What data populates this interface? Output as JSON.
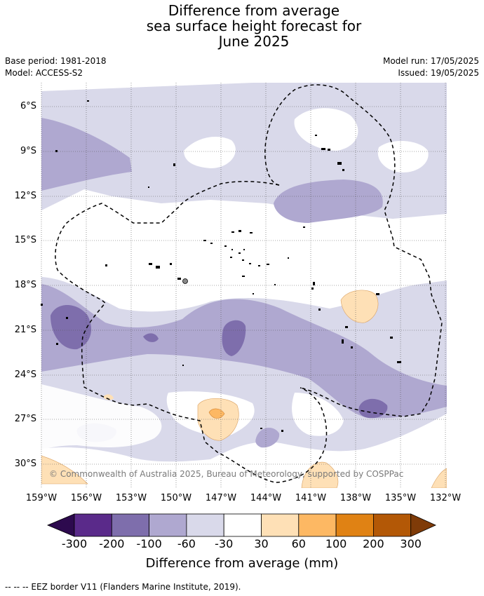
{
  "title": {
    "line1": "Difference from average",
    "line2": "sea surface height forecast for",
    "line3": "June 2025"
  },
  "meta": {
    "base_period": "Base period: 1981-2018",
    "model": "Model: ACCESS-S2",
    "model_run": "Model run: 17/05/2025",
    "issued": "Issued: 19/05/2025"
  },
  "lat_labels": [
    "6°S",
    "9°S",
    "12°S",
    "15°S",
    "18°S",
    "21°S",
    "24°S",
    "27°S",
    "30°S"
  ],
  "lon_labels": [
    "159°W",
    "156°W",
    "153°W",
    "150°W",
    "147°W",
    "144°W",
    "141°W",
    "138°W",
    "135°W",
    "132°W"
  ],
  "copyright": "© Commonwealth of Australia 2025, Bureau of Meteorology, supported by COSPPac",
  "colorbar": {
    "labels": [
      "-300",
      "-200",
      "-100",
      "-60",
      "-30",
      "30",
      "60",
      "100",
      "200",
      "300"
    ],
    "title": "Difference from average (mm)",
    "colors": {
      "below_min": "#2d0a4e",
      "c1": "#5a2a8a",
      "c2": "#7e6eac",
      "c3": "#afa8d0",
      "c4": "#d9d9ea",
      "c5": "#ffffff",
      "c6": "#fee0b6",
      "c7": "#fdb863",
      "c8": "#e08214",
      "c9": "#b35806",
      "above_max": "#7f3b08"
    }
  },
  "footer": "--  --  -- EEZ border V11 (Flanders Marine Institute, 2019)."
}
